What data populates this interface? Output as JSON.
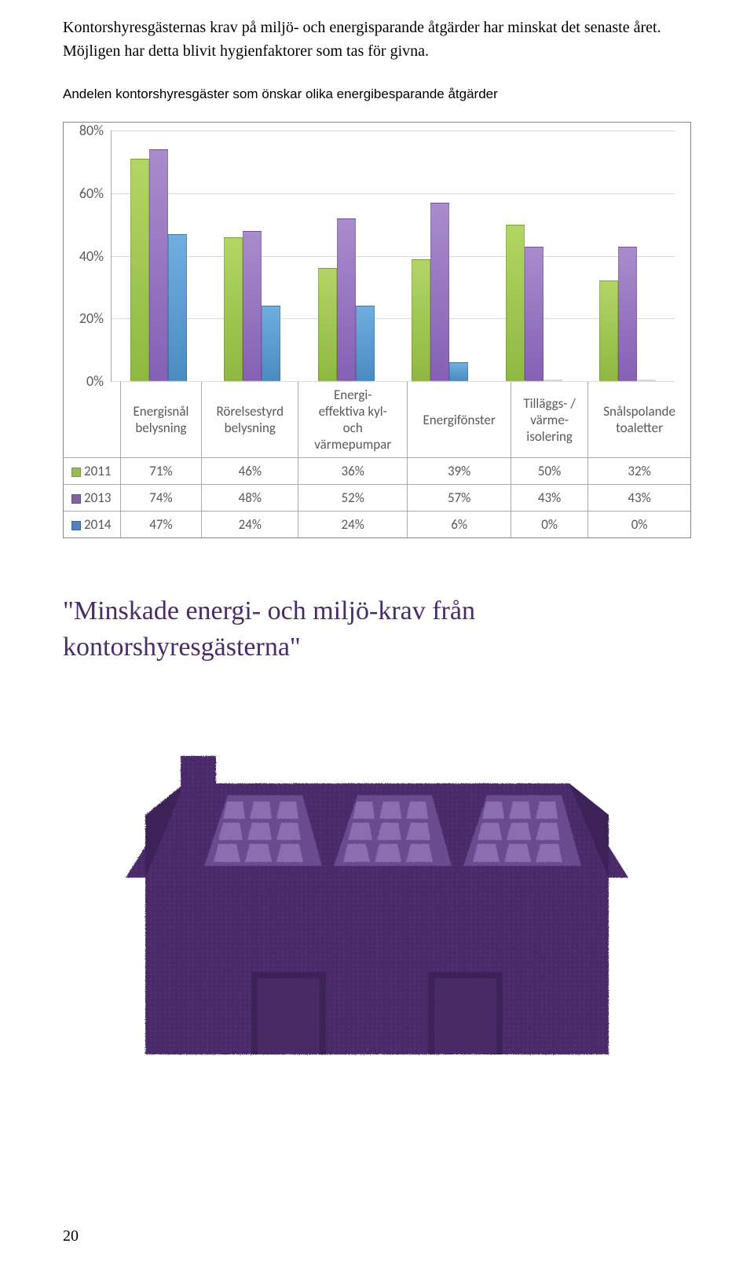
{
  "intro": "Kontorshyresgästernas krav på miljö- och energisparande åtgärder har minskat det senaste året. Möjligen har detta blivit hygienfaktorer som tas för givna.",
  "chart_title": "Andelen kontorshyresgäster som önskar olika energibesparande åtgärder",
  "chart": {
    "type": "bar",
    "ylim": [
      0,
      80
    ],
    "ytick_step": 20,
    "yticks": [
      "0%",
      "20%",
      "40%",
      "60%",
      "80%"
    ],
    "categories": [
      "Energisnål belysning",
      "Rörelsestyrd belysning",
      "Energi-effektiva kyl- och värmepumpar",
      "Energifönster",
      "Tilläggs- / värme-isolering",
      "Snålspolande toaletter"
    ],
    "cat_html": [
      "Energisnål<br>belysning",
      "Rörelsestyrd<br>belysning",
      "Energi-<br>effektiva kyl-<br>och<br>värmepumpar",
      "Energifönster",
      "Tilläggs- /<br>värme-<br>isolering",
      "Snålspolande<br>toaletter"
    ],
    "series": [
      {
        "name": "2011",
        "color": "#9bbb59",
        "values": [
          71,
          46,
          36,
          39,
          50,
          32
        ]
      },
      {
        "name": "2013",
        "color": "#8064a2",
        "values": [
          74,
          48,
          52,
          57,
          43,
          43
        ]
      },
      {
        "name": "2014",
        "color": "#4f81bd",
        "values": [
          47,
          24,
          24,
          6,
          0,
          0
        ]
      }
    ],
    "background_color": "#ffffff",
    "grid_color": "#d9d9d9",
    "axis_color": "#aaaaaa",
    "label_color": "#595959",
    "label_fontsize": 17
  },
  "quote": "\"Minskade energi- och miljö-krav från kontorshyresgästerna\"",
  "house": {
    "base_color": "#4b2a6a",
    "panel_frame": "#6a4c8f",
    "panel_cell": "#8a6eb0",
    "highlight": "#b8a3d1"
  },
  "page_number": "20"
}
